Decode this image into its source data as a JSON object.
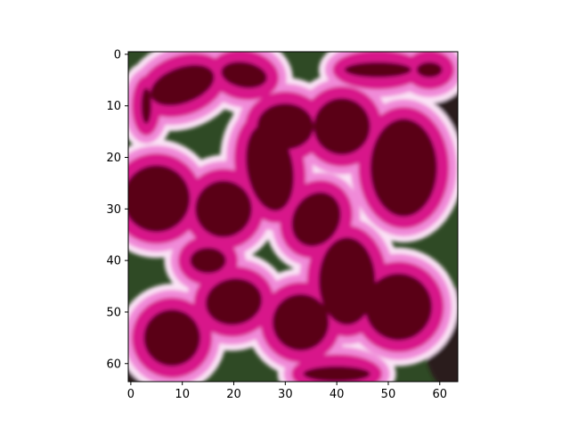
{
  "chart_data": {
    "type": "image",
    "subject": "pixelated close-up of magenta and white geranium petals with dark red centers",
    "x_axis": {
      "range": [
        -0.5,
        63.5
      ],
      "ticks": [
        0,
        10,
        20,
        30,
        40,
        50,
        60
      ]
    },
    "y_axis": {
      "range": [
        -0.5,
        63.5
      ],
      "ticks": [
        0,
        10,
        20,
        30,
        40,
        50,
        60
      ],
      "inverted": true
    },
    "x_tick_labels": [
      "0",
      "10",
      "20",
      "30",
      "40",
      "50",
      "60"
    ],
    "y_tick_labels": [
      "0",
      "10",
      "20",
      "30",
      "40",
      "50",
      "60"
    ],
    "title": "",
    "xlabel": "",
    "ylabel": "",
    "grid": false,
    "colors": {
      "dark_crimson": "#5a0018",
      "magenta": "#d8198a",
      "pink_edge": "#f08ad8",
      "white_rim": "#fbe3f6",
      "leaf_green": "#2f5a2a",
      "shadow": "#2a1a1a"
    }
  }
}
